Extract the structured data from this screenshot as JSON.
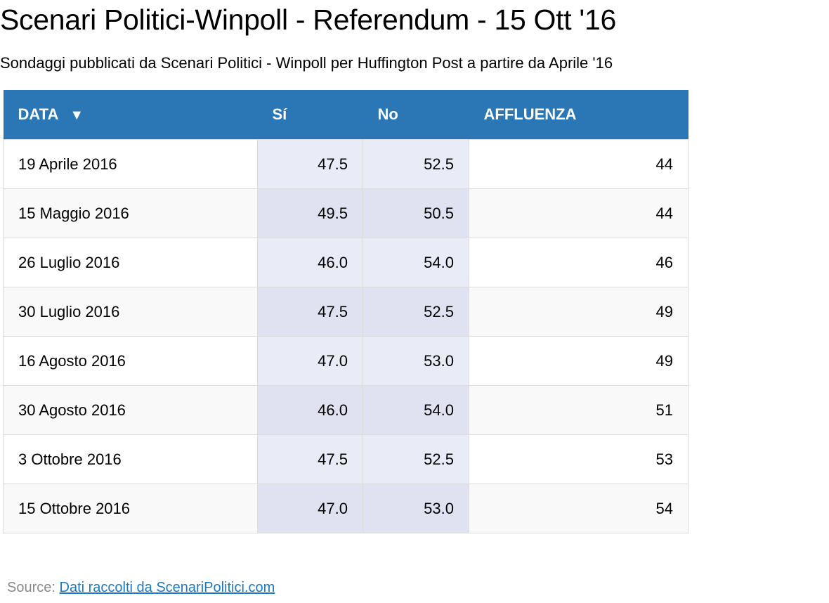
{
  "title": "Scenari Politici-Winpoll - Referendum - 15 Ott '16",
  "subtitle": "Sondaggi pubblicati da Scenari Politici - Winpoll per Huffington Post a partire da Aprile '16",
  "table": {
    "headers": {
      "data": "DATA",
      "si": "Sí",
      "no": "No",
      "affluenza": "AFFLUENZA"
    },
    "sort_icon": "▼",
    "rows": [
      {
        "data": "19 Aprile 2016",
        "si": "47.5",
        "no": "52.5",
        "affluenza": "44"
      },
      {
        "data": "15 Maggio 2016",
        "si": "49.5",
        "no": "50.5",
        "affluenza": "44"
      },
      {
        "data": "26 Luglio 2016",
        "si": "46.0",
        "no": "54.0",
        "affluenza": "46"
      },
      {
        "data": "30 Luglio 2016",
        "si": "47.5",
        "no": "52.5",
        "affluenza": "49"
      },
      {
        "data": "16 Agosto 2016",
        "si": "47.0",
        "no": "53.0",
        "affluenza": "49"
      },
      {
        "data": "30 Agosto 2016",
        "si": "46.0",
        "no": "54.0",
        "affluenza": "51"
      },
      {
        "data": "3 Ottobre 2016",
        "si": "47.5",
        "no": "52.5",
        "affluenza": "53"
      },
      {
        "data": "15 Ottobre 2016",
        "si": "47.0",
        "no": "53.0",
        "affluenza": "54"
      }
    ]
  },
  "source": {
    "label": "Source:",
    "link_text": "Dati raccolti da ScenariPolitici.com"
  },
  "colors": {
    "header_bg": "#2b76b5",
    "header_text": "#ffffff",
    "highlight_col_odd": "#e9ebf7",
    "highlight_col_even": "#e1e2f1",
    "link": "#1a7bc4",
    "source_text": "#8a8a8a"
  },
  "chart_data": {
    "type": "table",
    "columns": [
      "DATA",
      "Sí",
      "No",
      "AFFLUENZA"
    ],
    "rows": [
      [
        "19 Aprile 2016",
        47.5,
        52.5,
        44
      ],
      [
        "15 Maggio 2016",
        49.5,
        50.5,
        44
      ],
      [
        "26 Luglio 2016",
        46.0,
        54.0,
        46
      ],
      [
        "30 Luglio 2016",
        47.5,
        52.5,
        49
      ],
      [
        "16 Agosto 2016",
        47.0,
        53.0,
        49
      ],
      [
        "30 Agosto 2016",
        46.0,
        54.0,
        51
      ],
      [
        "3 Ottobre 2016",
        47.5,
        52.5,
        53
      ],
      [
        "15 Ottobre 2016",
        47.0,
        53.0,
        54
      ]
    ],
    "sort": {
      "column": "DATA",
      "direction": "descending-indicator"
    },
    "title": "Scenari Politici-Winpoll - Referendum - 15 Ott '16",
    "subtitle": "Sondaggi pubblicati da Scenari Politici - Winpoll per Huffington Post a partire da Aprile '16"
  }
}
